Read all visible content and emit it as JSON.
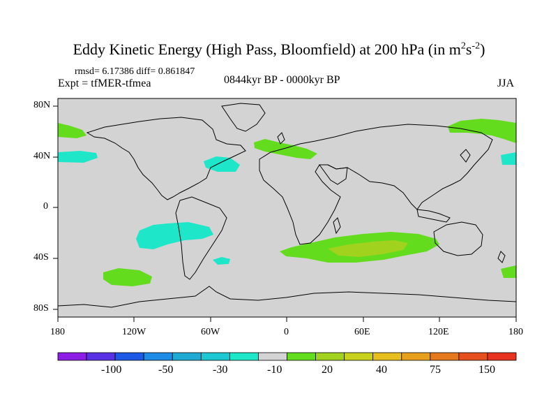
{
  "title": {
    "main": "Eddy Kinetic Energy (High Pass, Bloomfield) at 200 hPa (in m",
    "sup1": "2",
    "mid": "s",
    "sup2": "-2",
    "end": ")"
  },
  "stats": "rmsd= 6.17386 diff= 0.861847",
  "experiment": "Expt = tfMER-tfmea",
  "period": "0844kyr BP - 0000kyr BP",
  "season": "JJA",
  "lat_labels": [
    "80N",
    "40N",
    "0",
    "40S",
    "80S"
  ],
  "lon_labels": [
    "180",
    "120W",
    "60W",
    "0",
    "60E",
    "120E",
    "180"
  ],
  "colorbar": {
    "colors": [
      "#8c1ee6",
      "#5a32e6",
      "#1e5ae6",
      "#1e8ce6",
      "#1eaad2",
      "#1ec8d2",
      "#1ee6c8",
      "#d3d3d3",
      "#64dc1e",
      "#a0d21e",
      "#c8d21e",
      "#e6be1e",
      "#e6a01e",
      "#e6781e",
      "#e6501e",
      "#e6321e"
    ],
    "labels": [
      "-100",
      "-50",
      "-30",
      "-10",
      "20",
      "40",
      "75",
      "150"
    ]
  },
  "colors": {
    "land_outline": "#000000",
    "background_field": "#d3d3d3"
  }
}
